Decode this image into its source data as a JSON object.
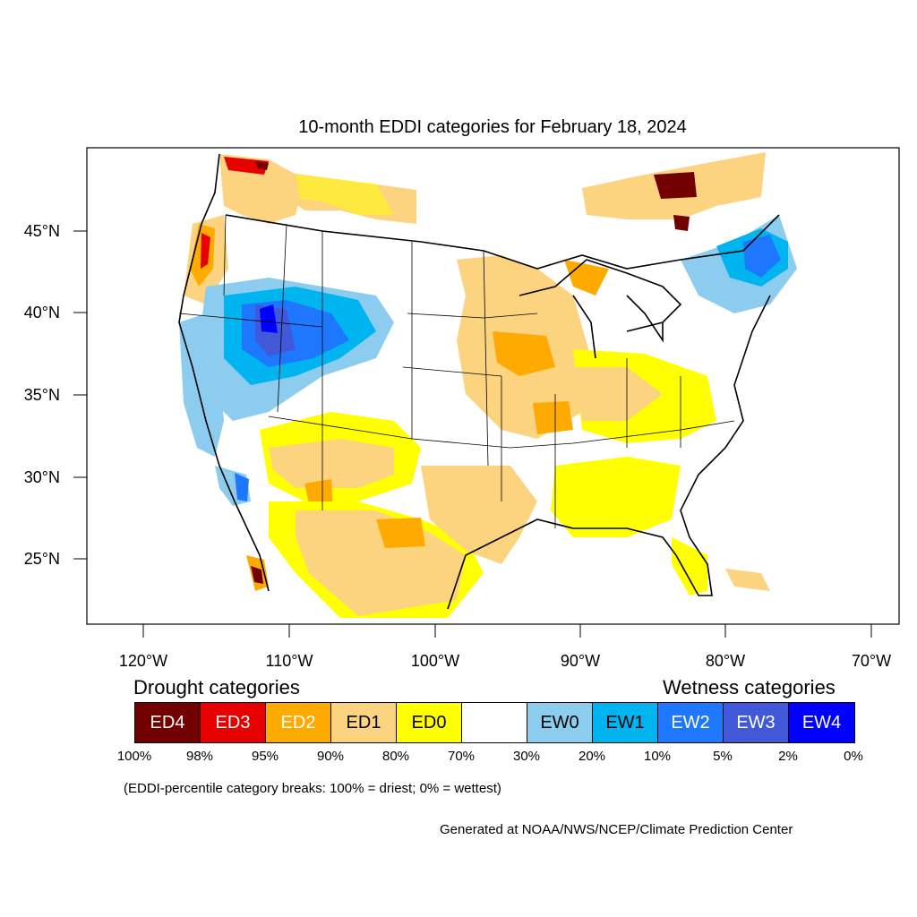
{
  "title": "10-month EDDI categories for February 18, 2024",
  "lat_ticks": [
    "45°N",
    "40°N",
    "35°N",
    "30°N",
    "25°N"
  ],
  "lon_ticks": [
    "120°W",
    "110°W",
    "100°W",
    "90°W",
    "80°W",
    "70°W"
  ],
  "legend": {
    "drought_heading": "Drought categories",
    "wetness_heading": "Wetness categories",
    "categories": [
      {
        "label": "ED4",
        "color": "#730000",
        "text_color": "#ffffff"
      },
      {
        "label": "ED3",
        "color": "#e60000",
        "text_color": "#ffffff"
      },
      {
        "label": "ED2",
        "color": "#ffaa00",
        "text_color": "#ffffff"
      },
      {
        "label": "ED1",
        "color": "#fcd37f",
        "text_color": "#000000"
      },
      {
        "label": "ED0",
        "color": "#ffff00",
        "text_color": "#000000"
      },
      {
        "label": "",
        "color": "#ffffff",
        "text_color": "#000000"
      },
      {
        "label": "EW0",
        "color": "#8ccdef",
        "text_color": "#000000"
      },
      {
        "label": "EW1",
        "color": "#00b4f0",
        "text_color": "#000000"
      },
      {
        "label": "EW2",
        "color": "#1e78ff",
        "text_color": "#ffffff"
      },
      {
        "label": "EW3",
        "color": "#4159d8",
        "text_color": "#ffffff"
      },
      {
        "label": "EW4",
        "color": "#0000ff",
        "text_color": "#ffffff"
      }
    ],
    "percent_breaks": [
      "100%",
      "98%",
      "95%",
      "90%",
      "80%",
      "70%",
      "30%",
      "20%",
      "10%",
      "5%",
      "2%",
      "0%"
    ]
  },
  "breaks_note": "(EDDI-percentile category breaks: 100% = driest; 0% = wettest)",
  "credit": "Generated at NOAA/NWS/NCEP/Climate Prediction Center"
}
